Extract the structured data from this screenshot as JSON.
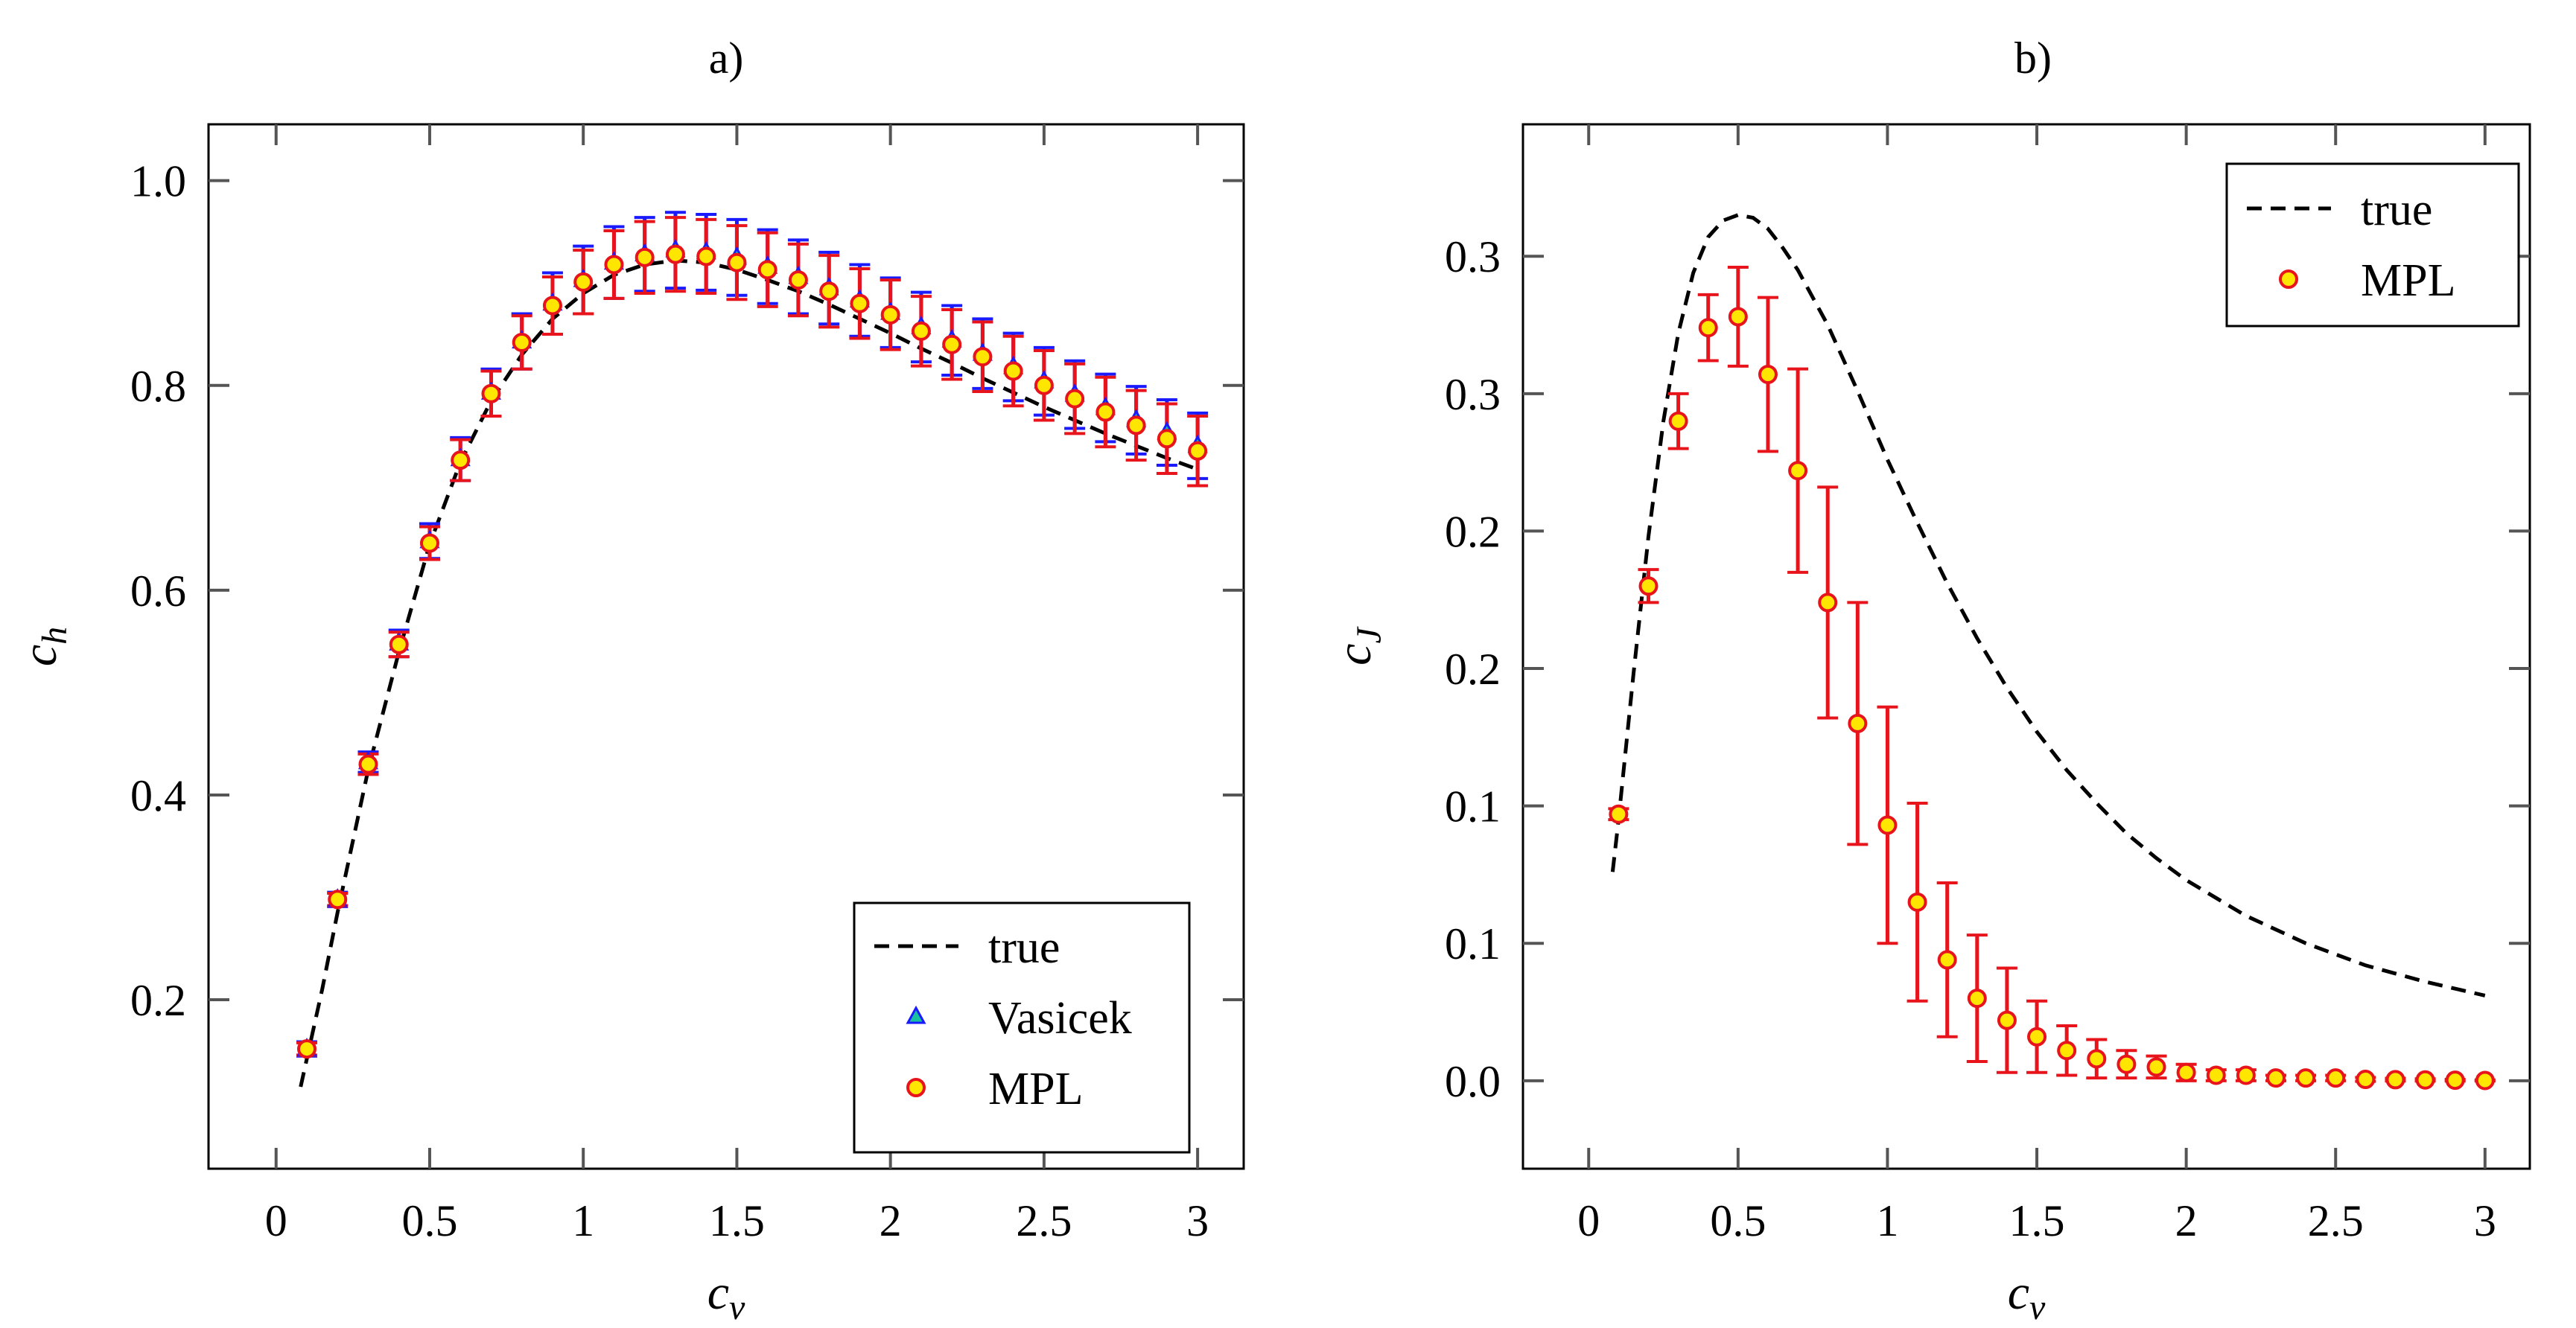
{
  "chart_data": [
    {
      "panel": "a)",
      "title": "a)",
      "type": "scatter",
      "xlabel": "c_v",
      "ylabel": "c_h",
      "xlabel_main": "c",
      "xlabel_sub": "v",
      "ylabel_main": "c",
      "ylabel_sub": "h",
      "xlim": [
        -0.22,
        3.15
      ],
      "ylim": [
        0.035,
        1.055
      ],
      "xticks": [
        0,
        0.5,
        1,
        1.5,
        2,
        2.5,
        3
      ],
      "xtick_labels": [
        "0",
        "0.5",
        "1",
        "1.5",
        "2",
        "2.5",
        "3"
      ],
      "yticks": [
        0.2,
        0.4,
        0.6,
        0.8,
        1.0
      ],
      "ytick_labels": [
        "0.2",
        "0.4",
        "0.6",
        "0.8",
        "1.0"
      ],
      "legend_position": "bottom-right",
      "legend": [
        "true",
        "Vasicek",
        "MPL"
      ],
      "true_curve": {
        "name": "true",
        "x": [
          0.08,
          0.15,
          0.2,
          0.3,
          0.4,
          0.5,
          0.6,
          0.7,
          0.8,
          0.9,
          1.0,
          1.1,
          1.2,
          1.3,
          1.4,
          1.5,
          1.6,
          1.7,
          1.8,
          1.9,
          2.0,
          2.1,
          2.2,
          2.3,
          2.4,
          2.5,
          2.6,
          2.7,
          2.8,
          2.9,
          3.0
        ],
        "y": [
          0.115,
          0.21,
          0.285,
          0.425,
          0.54,
          0.645,
          0.725,
          0.785,
          0.83,
          0.865,
          0.89,
          0.908,
          0.918,
          0.922,
          0.92,
          0.913,
          0.903,
          0.892,
          0.879,
          0.865,
          0.851,
          0.836,
          0.822,
          0.807,
          0.793,
          0.779,
          0.766,
          0.753,
          0.741,
          0.729,
          0.718
        ]
      },
      "series": [
        {
          "name": "Vasicek",
          "x": [
            0.1,
            0.2,
            0.3,
            0.4,
            0.5,
            0.6,
            0.7,
            0.8,
            0.9,
            1.0,
            1.1,
            1.2,
            1.3,
            1.4,
            1.5,
            1.6,
            1.7,
            1.8,
            1.9,
            2.0,
            2.1,
            2.2,
            2.3,
            2.4,
            2.5,
            2.6,
            2.7,
            2.8,
            2.9,
            3.0
          ],
          "y": [
            0.152,
            0.298,
            0.432,
            0.548,
            0.648,
            0.728,
            0.793,
            0.843,
            0.88,
            0.903,
            0.92,
            0.928,
            0.932,
            0.93,
            0.925,
            0.916,
            0.906,
            0.895,
            0.883,
            0.871,
            0.857,
            0.844,
            0.831,
            0.818,
            0.804,
            0.791,
            0.778,
            0.766,
            0.754,
            0.741
          ],
          "err": [
            0.007,
            0.007,
            0.01,
            0.013,
            0.017,
            0.021,
            0.023,
            0.027,
            0.03,
            0.033,
            0.035,
            0.036,
            0.037,
            0.037,
            0.037,
            0.036,
            0.036,
            0.035,
            0.035,
            0.034,
            0.034,
            0.034,
            0.034,
            0.033,
            0.033,
            0.033,
            0.033,
            0.033,
            0.032,
            0.032
          ]
        },
        {
          "name": "MPL",
          "x": [
            0.1,
            0.2,
            0.3,
            0.4,
            0.5,
            0.6,
            0.7,
            0.8,
            0.9,
            1.0,
            1.1,
            1.2,
            1.3,
            1.4,
            1.5,
            1.6,
            1.7,
            1.8,
            1.9,
            2.0,
            2.1,
            2.2,
            2.3,
            2.4,
            2.5,
            2.6,
            2.7,
            2.8,
            2.9,
            3.0
          ],
          "y": [
            0.152,
            0.298,
            0.43,
            0.547,
            0.646,
            0.727,
            0.792,
            0.842,
            0.878,
            0.901,
            0.918,
            0.925,
            0.928,
            0.926,
            0.92,
            0.913,
            0.903,
            0.892,
            0.88,
            0.869,
            0.853,
            0.84,
            0.828,
            0.814,
            0.8,
            0.787,
            0.774,
            0.761,
            0.748,
            0.736
          ],
          "err": [
            0.006,
            0.006,
            0.01,
            0.012,
            0.016,
            0.02,
            0.022,
            0.026,
            0.028,
            0.031,
            0.033,
            0.035,
            0.036,
            0.036,
            0.036,
            0.036,
            0.035,
            0.035,
            0.034,
            0.034,
            0.034,
            0.034,
            0.034,
            0.034,
            0.034,
            0.034,
            0.034,
            0.034,
            0.034,
            0.034
          ]
        }
      ]
    },
    {
      "panel": "b)",
      "title": "b)",
      "type": "scatter",
      "xlabel": "c_v",
      "ylabel": "c_J",
      "xlabel_main": "c",
      "xlabel_sub": "v",
      "ylabel_main": "c",
      "ylabel_sub": "J",
      "xlim": [
        -0.22,
        3.15
      ],
      "ylim": [
        -0.032,
        0.348
      ],
      "xticks": [
        0,
        0.5,
        1,
        1.5,
        2,
        2.5,
        3
      ],
      "xtick_labels": [
        "0",
        "0.5",
        "1",
        "1.5",
        "2",
        "2.5",
        "3"
      ],
      "yticks": [
        0.0,
        0.05,
        0.1,
        0.15,
        0.2,
        0.25,
        0.3
      ],
      "ytick_labels": [
        "0.0",
        "0.1",
        "0.1",
        "0.2",
        "0.2",
        "0.3",
        "0.3"
      ],
      "legend_position": "top-right",
      "legend": [
        "true",
        "MPL"
      ],
      "true_curve": {
        "name": "true",
        "x": [
          0.08,
          0.1,
          0.15,
          0.2,
          0.25,
          0.3,
          0.35,
          0.4,
          0.45,
          0.5,
          0.55,
          0.6,
          0.65,
          0.7,
          0.8,
          0.9,
          1.0,
          1.1,
          1.2,
          1.3,
          1.4,
          1.5,
          1.6,
          1.7,
          1.8,
          1.9,
          2.0,
          2.2,
          2.4,
          2.6,
          2.8,
          3.0
        ],
        "y": [
          0.076,
          0.095,
          0.148,
          0.198,
          0.24,
          0.272,
          0.294,
          0.307,
          0.313,
          0.315,
          0.314,
          0.31,
          0.303,
          0.295,
          0.275,
          0.251,
          0.226,
          0.203,
          0.181,
          0.161,
          0.143,
          0.127,
          0.113,
          0.101,
          0.09,
          0.081,
          0.073,
          0.06,
          0.05,
          0.042,
          0.036,
          0.031
        ]
      },
      "series": [
        {
          "name": "MPL",
          "x": [
            0.1,
            0.2,
            0.3,
            0.4,
            0.5,
            0.6,
            0.7,
            0.8,
            0.9,
            1.0,
            1.1,
            1.2,
            1.3,
            1.4,
            1.5,
            1.6,
            1.7,
            1.8,
            1.9,
            2.0,
            2.1,
            2.2,
            2.3,
            2.4,
            2.5,
            2.6,
            2.7,
            2.8,
            2.9,
            3.0
          ],
          "y": [
            0.097,
            0.18,
            0.24,
            0.274,
            0.278,
            0.257,
            0.222,
            0.174,
            0.13,
            0.093,
            0.065,
            0.044,
            0.03,
            0.022,
            0.016,
            0.011,
            0.008,
            0.006,
            0.005,
            0.003,
            0.002,
            0.002,
            0.001,
            0.001,
            0.001,
            0.0005,
            0.0004,
            0.0003,
            0.0002,
            0.0001
          ],
          "err": [
            0.002,
            0.006,
            0.01,
            0.012,
            0.018,
            0.028,
            0.037,
            0.042,
            0.044,
            0.043,
            0.036,
            0.028,
            0.023,
            0.019,
            0.013,
            0.009,
            0.007,
            0.005,
            0.004,
            0.003,
            0.002,
            0.002,
            0.001,
            0.001,
            0.001,
            0.0007,
            0.0005,
            0.0004,
            0.0003,
            0.0002
          ]
        }
      ]
    }
  ],
  "colors": {
    "true_line": "#000000",
    "errorbar": "#e8141c",
    "errorbar_vasicek": "#1a1aff",
    "marker_fill": "#ffe600",
    "marker_edge": "#e8141c",
    "vasicek_fill": "#18c0a0",
    "vasicek_edge": "#1a1aff",
    "axes": "#000000",
    "ticks": "#555555"
  }
}
